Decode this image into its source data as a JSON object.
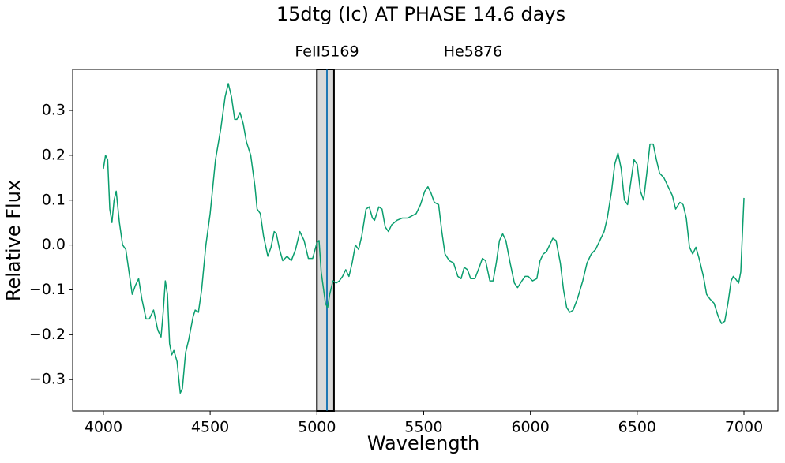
{
  "chart_data": {
    "type": "line",
    "title": "15dtg (Ic) AT PHASE 14.6 days",
    "xlabel": "Wavelength",
    "ylabel": "Relative Flux",
    "xlim": [
      3856,
      7159
    ],
    "ylim": [
      -0.37,
      0.3915
    ],
    "xticks": [
      4000,
      4500,
      5000,
      5500,
      6000,
      6500,
      7000
    ],
    "yticks": [
      {
        "value": -0.3,
        "label": "−0.3"
      },
      {
        "value": -0.2,
        "label": "−0.2"
      },
      {
        "value": -0.1,
        "label": "−0.1"
      },
      {
        "value": 0,
        "label": "0.0"
      },
      0.1,
      0.2,
      0.3
    ],
    "band": [
      5000,
      5080
    ],
    "band_color": "#d9d9d9",
    "vline": 5047,
    "vline_color": "#1f77b4",
    "markers": [
      {
        "label": "FeII5169",
        "x": 5047
      },
      {
        "label": "He5876",
        "x": 5731
      }
    ],
    "x": [
      4000,
      4010,
      4020,
      4030,
      4040,
      4050,
      4060,
      4075,
      4090,
      4105,
      4120,
      4135,
      4150,
      4165,
      4180,
      4200,
      4215,
      4235,
      4255,
      4270,
      4280,
      4290,
      4300,
      4310,
      4320,
      4330,
      4345,
      4360,
      4370,
      4385,
      4400,
      4420,
      4430,
      4445,
      4460,
      4480,
      4500,
      4525,
      4550,
      4570,
      4585,
      4600,
      4615,
      4625,
      4640,
      4655,
      4670,
      4690,
      4710,
      4720,
      4735,
      4750,
      4770,
      4785,
      4800,
      4810,
      4825,
      4840,
      4860,
      4880,
      4900,
      4920,
      4940,
      4960,
      4980,
      5000,
      5010,
      5020,
      5040,
      5050,
      5060,
      5075,
      5090,
      5105,
      5120,
      5135,
      5150,
      5165,
      5180,
      5195,
      5210,
      5230,
      5245,
      5260,
      5270,
      5290,
      5305,
      5320,
      5335,
      5350,
      5375,
      5400,
      5425,
      5445,
      5465,
      5485,
      5505,
      5520,
      5535,
      5550,
      5570,
      5585,
      5600,
      5620,
      5640,
      5660,
      5675,
      5690,
      5705,
      5720,
      5740,
      5760,
      5775,
      5790,
      5810,
      5825,
      5840,
      5855,
      5870,
      5885,
      5905,
      5925,
      5940,
      5960,
      5975,
      5990,
      6010,
      6030,
      6045,
      6060,
      6075,
      6090,
      6105,
      6120,
      6140,
      6155,
      6170,
      6185,
      6200,
      6220,
      6245,
      6265,
      6285,
      6305,
      6325,
      6345,
      6360,
      6380,
      6395,
      6410,
      6425,
      6440,
      6455,
      6470,
      6485,
      6500,
      6515,
      6530,
      6545,
      6560,
      6575,
      6590,
      6605,
      6625,
      6645,
      6665,
      6680,
      6700,
      6715,
      6730,
      6745,
      6760,
      6775,
      6790,
      6810,
      6825,
      6840,
      6860,
      6880,
      6895,
      6910,
      6925,
      6940,
      6950,
      6960,
      6975,
      6985,
      6995,
      7000
    ],
    "series": [
      {
        "color": "#0a9e6e",
        "values": [
          0.17,
          0.2,
          0.19,
          0.08,
          0.05,
          0.1,
          0.12,
          0.05,
          0.0,
          -0.01,
          -0.06,
          -0.11,
          -0.09,
          -0.075,
          -0.12,
          -0.165,
          -0.165,
          -0.145,
          -0.19,
          -0.205,
          -0.15,
          -0.08,
          -0.11,
          -0.22,
          -0.245,
          -0.235,
          -0.26,
          -0.33,
          -0.32,
          -0.24,
          -0.21,
          -0.16,
          -0.145,
          -0.15,
          -0.1,
          0.0,
          0.07,
          0.19,
          0.26,
          0.33,
          0.36,
          0.33,
          0.28,
          0.28,
          0.295,
          0.27,
          0.23,
          0.2,
          0.13,
          0.08,
          0.07,
          0.02,
          -0.025,
          -0.005,
          0.03,
          0.025,
          -0.01,
          -0.035,
          -0.025,
          -0.035,
          -0.01,
          0.03,
          0.01,
          -0.03,
          -0.03,
          0.005,
          0.01,
          -0.06,
          -0.13,
          -0.14,
          -0.11,
          -0.08,
          -0.085,
          -0.08,
          -0.07,
          -0.055,
          -0.07,
          -0.04,
          0.0,
          -0.01,
          0.02,
          0.08,
          0.085,
          0.06,
          0.055,
          0.085,
          0.08,
          0.04,
          0.03,
          0.045,
          0.055,
          0.06,
          0.06,
          0.065,
          0.07,
          0.09,
          0.12,
          0.13,
          0.115,
          0.095,
          0.09,
          0.03,
          -0.02,
          -0.035,
          -0.04,
          -0.07,
          -0.075,
          -0.05,
          -0.055,
          -0.075,
          -0.075,
          -0.05,
          -0.03,
          -0.035,
          -0.08,
          -0.08,
          -0.04,
          0.01,
          0.025,
          0.01,
          -0.04,
          -0.085,
          -0.095,
          -0.08,
          -0.07,
          -0.07,
          -0.08,
          -0.075,
          -0.035,
          -0.02,
          -0.015,
          0.0,
          0.015,
          0.01,
          -0.04,
          -0.1,
          -0.14,
          -0.15,
          -0.145,
          -0.12,
          -0.08,
          -0.04,
          -0.02,
          -0.01,
          0.01,
          0.03,
          0.06,
          0.12,
          0.18,
          0.205,
          0.17,
          0.1,
          0.09,
          0.14,
          0.19,
          0.18,
          0.12,
          0.1,
          0.16,
          0.225,
          0.225,
          0.19,
          0.16,
          0.15,
          0.13,
          0.11,
          0.08,
          0.095,
          0.09,
          0.06,
          -0.005,
          -0.02,
          -0.005,
          -0.03,
          -0.07,
          -0.11,
          -0.12,
          -0.13,
          -0.16,
          -0.175,
          -0.17,
          -0.13,
          -0.08,
          -0.07,
          -0.075,
          -0.085,
          -0.06,
          0.05,
          0.105
        ]
      }
    ]
  }
}
